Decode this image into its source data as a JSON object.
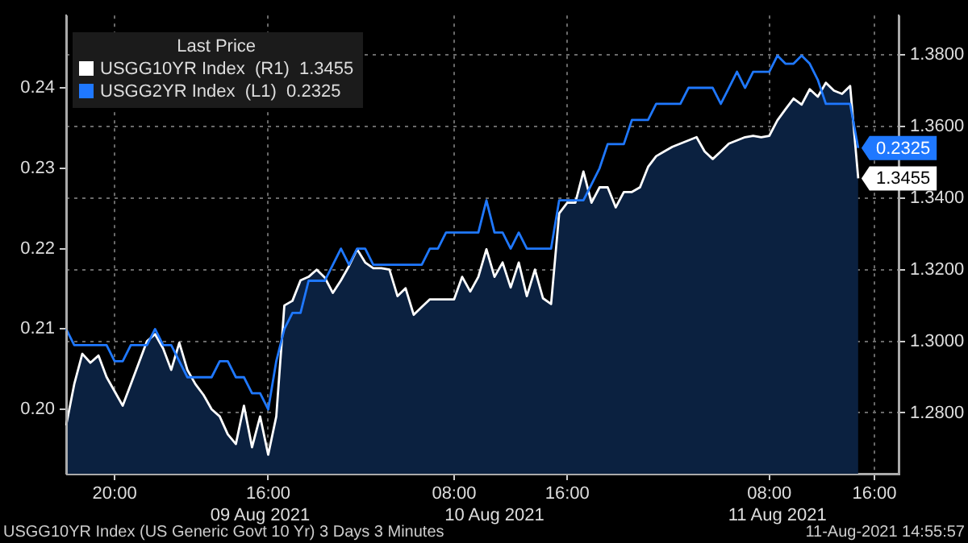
{
  "chart_data": {
    "type": "line",
    "categories": [
      null,
      null,
      null,
      null,
      null,
      null,
      "20:00",
      null,
      null,
      null,
      null,
      null,
      null,
      null,
      null,
      null,
      null,
      null,
      null,
      null,
      null,
      null,
      null,
      null,
      "\n09 Aug 2021",
      "16:00",
      null,
      null,
      null,
      null,
      null,
      null,
      null,
      null,
      null,
      null,
      null,
      null,
      null,
      null,
      null,
      null,
      null,
      null,
      null,
      null,
      null,
      null,
      "08:00",
      null,
      null,
      null,
      null,
      "\n10 Aug 2021",
      null,
      null,
      null,
      null,
      null,
      null,
      null,
      null,
      "16:00",
      null,
      null,
      null,
      null,
      null,
      null,
      null,
      null,
      null,
      null,
      null,
      null,
      null,
      null,
      null,
      null,
      null,
      null,
      null,
      null,
      null,
      null,
      null,
      null,
      "08:00",
      "\n11 Aug 2021",
      null,
      null,
      null,
      null,
      null,
      null,
      null,
      null,
      null,
      null,
      null,
      "16:00",
      null,
      null,
      null
    ],
    "series": [
      {
        "name": "USGG10YR Index  (R1)  1.3455",
        "type": "area",
        "axis": "y2",
        "color": "#ffffff",
        "values": [
          1.2765,
          1.288,
          1.2965,
          1.294,
          1.296,
          1.29,
          1.286,
          1.282,
          1.288,
          1.294,
          1.3,
          1.302,
          1.298,
          1.292,
          1.2996,
          1.292,
          1.288,
          1.285,
          1.281,
          1.279,
          1.274,
          1.2713,
          1.282,
          1.2704,
          1.279,
          1.2683,
          1.279,
          1.31,
          1.3113,
          1.317,
          1.318,
          1.32,
          1.3178,
          1.3135,
          1.317,
          1.321,
          1.3257,
          1.322,
          1.3204,
          1.3204,
          1.32,
          1.3126,
          1.3148,
          1.3074,
          1.3096,
          1.3117,
          1.3117,
          1.3117,
          1.3117,
          1.318,
          1.3139,
          1.318,
          1.3257,
          1.318,
          1.322,
          1.315,
          1.322,
          1.3126,
          1.32,
          1.312,
          1.3104,
          1.3357,
          1.3387,
          1.3387,
          1.3474,
          1.3387,
          1.343,
          1.343,
          1.3374,
          1.3417,
          1.3417,
          1.343,
          1.3487,
          1.3517,
          1.353,
          1.3543,
          1.3552,
          1.3561,
          1.357,
          1.353,
          1.3509,
          1.353,
          1.3552,
          1.3561,
          1.357,
          1.3574,
          1.357,
          1.3574,
          1.3617,
          1.3648,
          1.3678,
          1.3661,
          1.3704,
          1.3683,
          1.3722,
          1.37,
          1.3691,
          1.3713,
          1.3455,
          null,
          null,
          null,
          null,
          null
        ],
        "value_labels": [
          null,
          null,
          null,
          null,
          null,
          null,
          null,
          null,
          null,
          null,
          null,
          null,
          null,
          null,
          null,
          null,
          null,
          null,
          null,
          null,
          null,
          null,
          null,
          null,
          null,
          null,
          null,
          null,
          null,
          null,
          null,
          null,
          null,
          null,
          null,
          null,
          null,
          null,
          null,
          null,
          null,
          null,
          null,
          null,
          null,
          null,
          null,
          null,
          null,
          null,
          null,
          null,
          null,
          null,
          null,
          null,
          null,
          null,
          null,
          null,
          null,
          null,
          null,
          null,
          null,
          null,
          null,
          null,
          null,
          null,
          null,
          null,
          null,
          null,
          null,
          null,
          null,
          null,
          null,
          null,
          null,
          null,
          null,
          null,
          null,
          null,
          null,
          null,
          null,
          null,
          null,
          null,
          null,
          null,
          null,
          null,
          null,
          null,
          "1.3455",
          null,
          null,
          null,
          null,
          null
        ]
      },
      {
        "name": "USGG2YR Index  (L1)  0.2325",
        "type": "line",
        "axis": "y",
        "color": "#1f78ff",
        "values": [
          0.21,
          0.208,
          0.208,
          0.208,
          0.208,
          0.208,
          0.206,
          0.206,
          0.208,
          0.208,
          0.208,
          0.21,
          0.208,
          0.208,
          0.206,
          0.204,
          0.204,
          0.204,
          0.204,
          0.206,
          0.206,
          0.204,
          0.204,
          0.202,
          0.202,
          0.2,
          0.206,
          0.21,
          0.212,
          0.212,
          0.216,
          0.216,
          0.216,
          0.218,
          0.22,
          0.218,
          0.22,
          0.22,
          0.218,
          0.218,
          0.218,
          0.218,
          0.218,
          0.218,
          0.218,
          0.22,
          0.22,
          0.222,
          0.222,
          0.222,
          0.222,
          0.222,
          0.226,
          0.222,
          0.222,
          0.22,
          0.222,
          0.22,
          0.22,
          0.22,
          0.22,
          0.226,
          0.226,
          0.226,
          0.226,
          0.228,
          0.23,
          0.233,
          0.233,
          0.233,
          0.236,
          0.236,
          0.236,
          0.238,
          0.238,
          0.238,
          0.238,
          0.24,
          0.24,
          0.24,
          0.24,
          0.238,
          0.24,
          0.242,
          0.24,
          0.242,
          0.242,
          0.242,
          0.244,
          0.243,
          0.243,
          0.244,
          0.243,
          0.241,
          0.238,
          0.238,
          0.238,
          0.238,
          0.2325,
          null,
          null,
          null,
          null,
          null
        ],
        "value_labels": [
          null,
          null,
          null,
          null,
          null,
          null,
          null,
          null,
          null,
          null,
          null,
          null,
          null,
          null,
          null,
          null,
          null,
          null,
          null,
          null,
          null,
          null,
          null,
          null,
          null,
          null,
          null,
          null,
          null,
          null,
          null,
          null,
          null,
          null,
          null,
          null,
          null,
          null,
          null,
          null,
          null,
          null,
          null,
          null,
          null,
          null,
          null,
          null,
          null,
          null,
          null,
          null,
          null,
          null,
          null,
          null,
          null,
          null,
          null,
          null,
          null,
          null,
          null,
          null,
          null,
          null,
          null,
          null,
          null,
          null,
          null,
          null,
          null,
          null,
          null,
          null,
          null,
          null,
          null,
          null,
          null,
          null,
          null,
          null,
          null,
          null,
          null,
          null,
          null,
          null,
          null,
          null,
          null,
          null,
          null,
          null,
          null,
          null,
          "0.2325",
          null,
          null,
          null,
          null,
          null
        ]
      }
    ],
    "ylim": [
      0.192,
      0.249
    ],
    "yticks": [
      {
        "value": 0.2,
        "label": "0.20"
      },
      {
        "value": 0.21,
        "label": "0.21"
      },
      {
        "value": 0.22,
        "label": "0.22"
      },
      {
        "value": 0.23,
        "label": "0.23"
      },
      {
        "value": 0.24,
        "label": "0.24"
      }
    ],
    "y2lim": [
      1.263,
      1.391
    ],
    "y2ticks": [
      {
        "value": 1.28,
        "label": "1.2800"
      },
      {
        "value": 1.3,
        "label": "1.3000"
      },
      {
        "value": 1.32,
        "label": "1.3200"
      },
      {
        "value": 1.34,
        "label": "1.3400"
      },
      {
        "value": 1.36,
        "label": "1.3600"
      },
      {
        "value": 1.38,
        "label": "1.3800"
      }
    ],
    "grid": true,
    "legend": "top left",
    "legend_title": "Last Price",
    "annotations": [
      "USGG10YR Index (US Generic Govt 10 Yr) 3 Days 3 Minutes",
      "11-Aug-2021 14:55:57"
    ]
  }
}
